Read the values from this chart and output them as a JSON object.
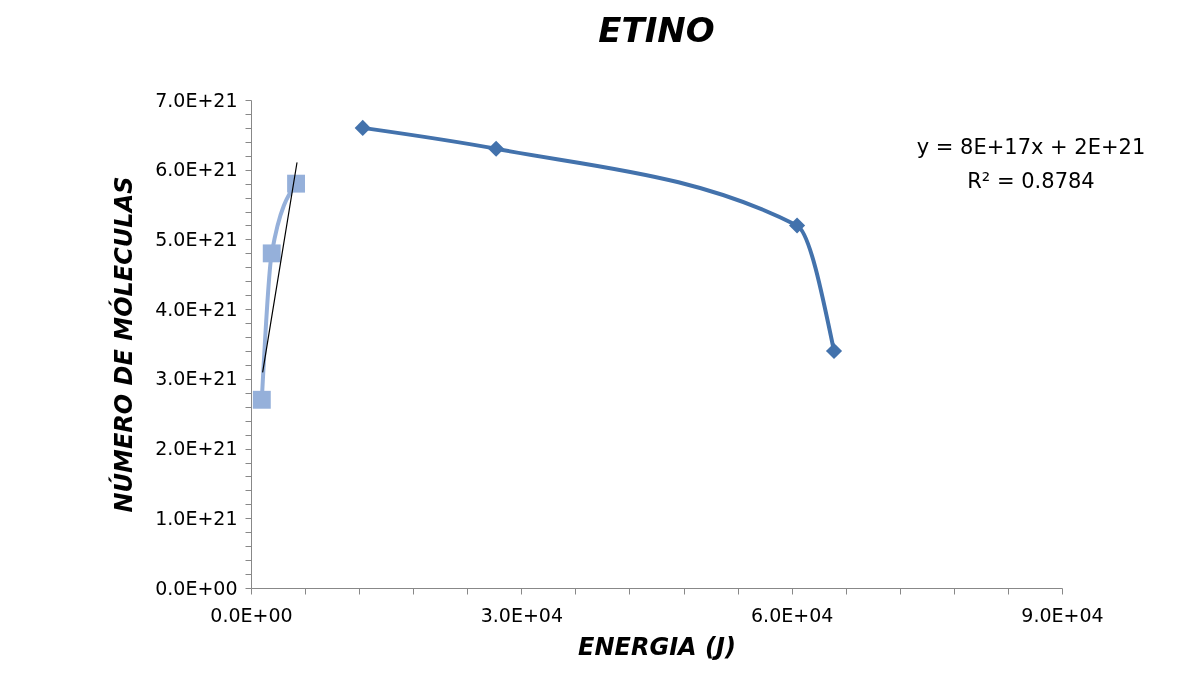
{
  "chart_data": {
    "type": "line",
    "title": "ETINO",
    "xlabel": "ENERGIA (J)",
    "ylabel": "NÚMERO DE MÓLECULAS",
    "xlim": [
      0,
      90000
    ],
    "ylim": [
      0,
      7e+21
    ],
    "xticks": [
      {
        "value": 0,
        "label": "0.0E+00"
      },
      {
        "value": 6000,
        "label": null
      },
      {
        "value": 12000,
        "label": null
      },
      {
        "value": 18000,
        "label": null
      },
      {
        "value": 24000,
        "label": null
      },
      {
        "value": 30000,
        "label": "3.0E+04"
      },
      {
        "value": 36000,
        "label": null
      },
      {
        "value": 42000,
        "label": null
      },
      {
        "value": 48000,
        "label": null
      },
      {
        "value": 54000,
        "label": null
      },
      {
        "value": 60000,
        "label": "6.0E+04"
      },
      {
        "value": 66000,
        "label": null
      },
      {
        "value": 72000,
        "label": null
      },
      {
        "value": 78000,
        "label": null
      },
      {
        "value": 84000,
        "label": null
      },
      {
        "value": 90000,
        "label": "9.0E+04"
      }
    ],
    "yticks": [
      {
        "value": 0,
        "label": "0.0E+00"
      },
      {
        "value": 2e+20,
        "label": null
      },
      {
        "value": 4e+20,
        "label": null
      },
      {
        "value": 6e+20,
        "label": null
      },
      {
        "value": 8e+20,
        "label": null
      },
      {
        "value": 1e+21,
        "label": "1.0E+21"
      },
      {
        "value": 1.2e+21,
        "label": null
      },
      {
        "value": 1.4e+21,
        "label": null
      },
      {
        "value": 1.6e+21,
        "label": null
      },
      {
        "value": 1.8e+21,
        "label": null
      },
      {
        "value": 2e+21,
        "label": "2.0E+21"
      },
      {
        "value": 2.2e+21,
        "label": null
      },
      {
        "value": 2.4e+21,
        "label": null
      },
      {
        "value": 2.6e+21,
        "label": null
      },
      {
        "value": 2.8e+21,
        "label": null
      },
      {
        "value": 3e+21,
        "label": "3.0E+21"
      },
      {
        "value": 3.2e+21,
        "label": null
      },
      {
        "value": 3.4e+21,
        "label": null
      },
      {
        "value": 3.6e+21,
        "label": null
      },
      {
        "value": 3.8e+21,
        "label": null
      },
      {
        "value": 4e+21,
        "label": "4.0E+21"
      },
      {
        "value": 4.2e+21,
        "label": null
      },
      {
        "value": 4.4e+21,
        "label": null
      },
      {
        "value": 4.6e+21,
        "label": null
      },
      {
        "value": 4.8e+21,
        "label": null
      },
      {
        "value": 5e+21,
        "label": "5.0E+21"
      },
      {
        "value": 5.2e+21,
        "label": null
      },
      {
        "value": 5.4e+21,
        "label": null
      },
      {
        "value": 5.6e+21,
        "label": null
      },
      {
        "value": 5.8e+21,
        "label": null
      },
      {
        "value": 6e+21,
        "label": "6.0E+21"
      },
      {
        "value": 6.2e+21,
        "label": null
      },
      {
        "value": 6.4e+21,
        "label": null
      },
      {
        "value": 6.6e+21,
        "label": null
      },
      {
        "value": 6.8e+21,
        "label": null
      },
      {
        "value": 7e+21,
        "label": "7.0E+21"
      }
    ],
    "grid": false,
    "series": [
      {
        "color": "#95b0da",
        "marker": "square",
        "x": [
          1200,
          2300,
          5000
        ],
        "values": [
          2.7e+21,
          4.8e+21,
          5.8e+21
        ]
      },
      {
        "color": "#4372ac",
        "marker": "diamond",
        "x": [
          12400,
          27200,
          60600,
          64700
        ],
        "values": [
          6.6e+21,
          6.3e+21,
          5.2e+21,
          3.4e+21
        ]
      },
      {
        "color": "#000000",
        "marker": "none",
        "x": [
          1300,
          5100
        ],
        "values": [
          3.1e+21,
          6.1e+21
        ]
      }
    ],
    "annotations": [
      "y = 8E+17x + 2E+21",
      "R² = 0.8784"
    ]
  }
}
